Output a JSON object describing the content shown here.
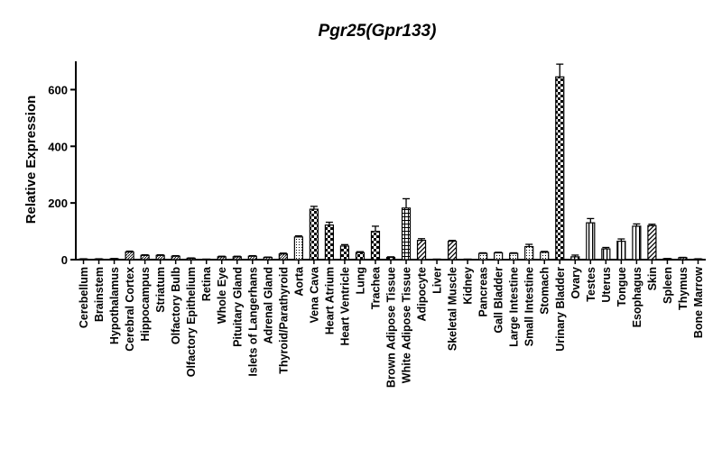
{
  "chart_data": {
    "type": "bar",
    "title": "Pgr25(Gpr133)",
    "xlabel": "",
    "ylabel": "Relative Expression",
    "ylim": [
      0,
      700
    ],
    "yticks": [
      0,
      200,
      400,
      600
    ],
    "grid": false,
    "legend": "none",
    "categories": [
      "Cerebellum",
      "Brainstem",
      "Hypothalamus",
      "Cerebral Cortex",
      "Hippocampus",
      "Striatum",
      "Olfactory Bulb",
      "Olfactory Epithelium",
      "Retina",
      "Whole Eye",
      "Pituitary Gland",
      "Islets of Langerhans",
      "Adrenal Gland",
      "Thyroid/Parathyroid",
      "Aorta",
      "Vena Cava",
      "Heart Atrium",
      "Heart Ventricle",
      "Lung",
      "Trachea",
      "Brown Adipose Tissue",
      "White Adipose Tissue",
      "Adipocyte",
      "Liver",
      "Skeletal Muscle",
      "Kidney",
      "Pancreas",
      "Gall Bladder",
      "Large Intestine",
      "Small Intestine",
      "Stomach",
      "Urinary Bladder",
      "Ovary",
      "Testes",
      "Uterus",
      "Tongue",
      "Esophagus",
      "Skin",
      "Spleen",
      "Thymus",
      "Bone Marrow"
    ],
    "values": [
      2,
      2,
      3,
      27,
      15,
      15,
      12,
      5,
      1,
      10,
      10,
      12,
      8,
      20,
      80,
      178,
      122,
      48,
      25,
      100,
      8,
      182,
      68,
      1,
      65,
      1,
      22,
      24,
      22,
      46,
      26,
      645,
      10,
      130,
      38,
      65,
      118,
      120,
      3,
      7,
      2
    ],
    "errors": [
      1,
      1,
      1,
      3,
      2,
      2,
      2,
      1,
      0,
      2,
      2,
      2,
      1,
      3,
      4,
      10,
      10,
      5,
      3,
      18,
      2,
      33,
      6,
      0,
      3,
      0,
      2,
      2,
      2,
      8,
      3,
      45,
      6,
      15,
      5,
      8,
      8,
      5,
      1,
      1,
      1
    ],
    "patterns": [
      "dense",
      "dense",
      "dense",
      "dense",
      "dense",
      "dense",
      "dense",
      "dense",
      "dense",
      "dense",
      "dense",
      "dense",
      "dense",
      "dense",
      "dots",
      "checker",
      "checker",
      "checker",
      "checker",
      "checker",
      "checker",
      "grid",
      "diag",
      "diag",
      "diag",
      "diag",
      "dots",
      "dots",
      "dots",
      "dots",
      "dots",
      "checker",
      "hstripe",
      "hstripe",
      "hstripe",
      "hstripe",
      "hstripe",
      "diag",
      "dense",
      "dense",
      "dense"
    ]
  },
  "colors": {
    "axis": "#000000",
    "bar_stroke": "#000000",
    "fill": "#000000",
    "background": "#ffffff"
  }
}
